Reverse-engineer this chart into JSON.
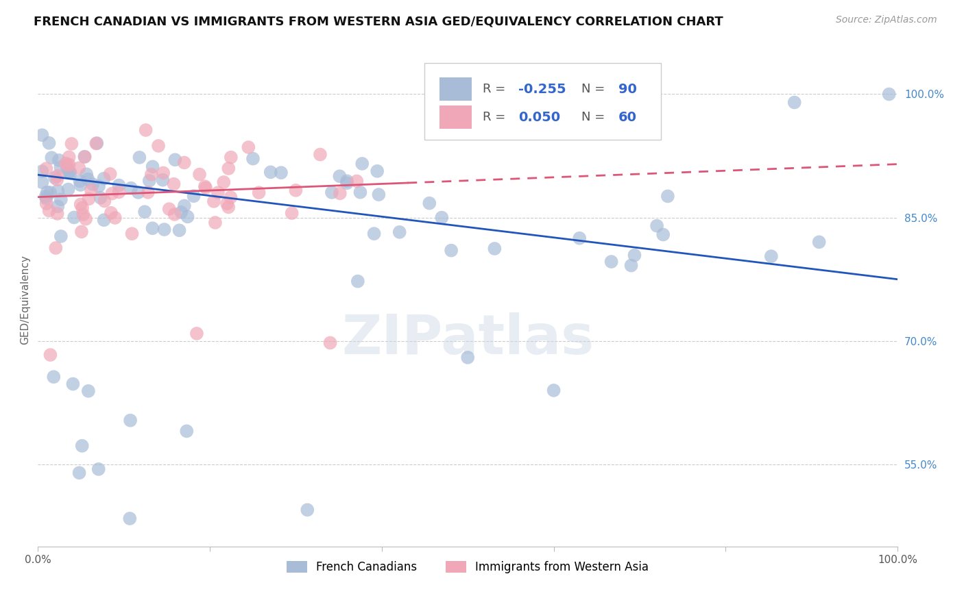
{
  "title": "FRENCH CANADIAN VS IMMIGRANTS FROM WESTERN ASIA GED/EQUIVALENCY CORRELATION CHART",
  "source": "Source: ZipAtlas.com",
  "ylabel": "GED/Equivalency",
  "watermark": "ZIPatlas",
  "xlim": [
    0.0,
    1.0
  ],
  "ylim": [
    0.45,
    1.05
  ],
  "y_ticks": [
    0.55,
    0.7,
    0.85,
    1.0
  ],
  "y_tick_labels": [
    "55.0%",
    "70.0%",
    "85.0%",
    "100.0%"
  ],
  "blue_R": "-0.255",
  "blue_N": "90",
  "pink_R": "0.050",
  "pink_N": "60",
  "legend_label_blue": "French Canadians",
  "legend_label_pink": "Immigrants from Western Asia",
  "blue_color": "#a8bcd8",
  "pink_color": "#f0a8b8",
  "blue_line_color": "#2255bb",
  "pink_line_color": "#dd5577",
  "background_color": "#ffffff",
  "grid_color": "#cccccc",
  "title_color": "#111111",
  "right_tick_color": "#4488cc",
  "r_n_label_color": "#3366cc",
  "r_text_color": "#555555"
}
